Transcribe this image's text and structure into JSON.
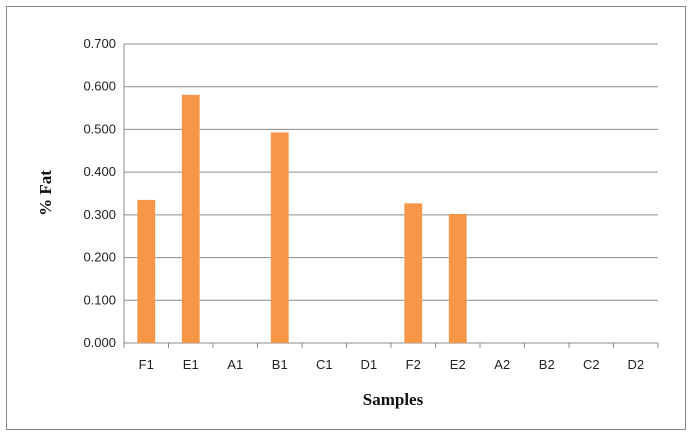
{
  "chart_data": {
    "type": "bar",
    "title": "",
    "xlabel": "Samples",
    "ylabel": "% Fat",
    "categories": [
      "F1",
      "E1",
      "A1",
      "B1",
      "C1",
      "D1",
      "F2",
      "E2",
      "A2",
      "B2",
      "C2",
      "D2"
    ],
    "series": [
      {
        "values": [
          0.335,
          0.581,
          0.0,
          0.493,
          0.0,
          0.0,
          0.327,
          0.302,
          0.0,
          0.0,
          0.0,
          0.0
        ],
        "color": "#f79646"
      }
    ],
    "ylim": [
      0,
      0.7
    ],
    "yticks": [
      "0.000",
      "0.100",
      "0.200",
      "0.300",
      "0.400",
      "0.500",
      "0.600",
      "0.700"
    ],
    "grid": true,
    "legend": "none"
  }
}
